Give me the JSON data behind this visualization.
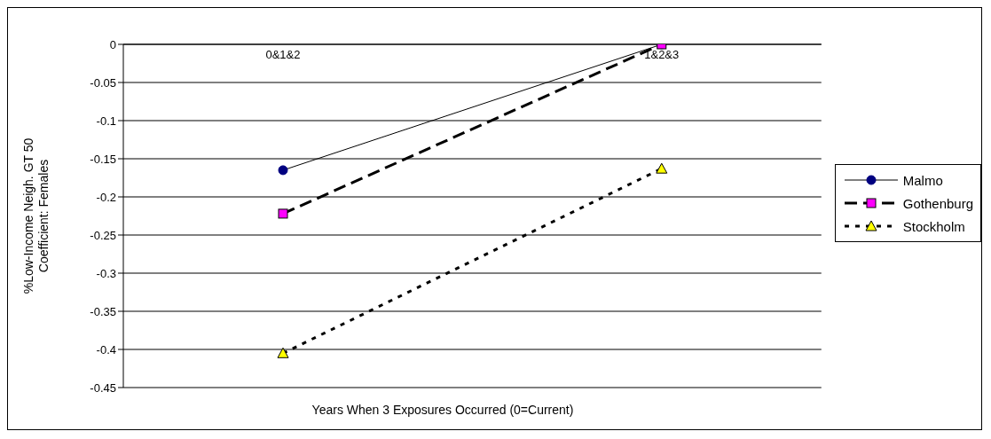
{
  "chart_data": {
    "type": "line",
    "xlabel": "Years When 3 Exposures Occurred (0=Current)",
    "ylabel": "%Low-Income Neigh. GT 50 Coefficient: Females",
    "categories": [
      "0&1&2",
      "1&2&3"
    ],
    "series": [
      {
        "name": "Malmo",
        "color": "#000080",
        "marker": "circle",
        "line_style": "solid",
        "values": [
          -0.165,
          0
        ]
      },
      {
        "name": "Gothenburg",
        "color": "#ff00ff",
        "marker": "square",
        "line_style": "dashed",
        "values": [
          -0.222,
          0
        ]
      },
      {
        "name": "Stockholm",
        "color": "#ffff00",
        "marker": "triangle",
        "line_style": "dotted",
        "values": [
          -0.405,
          -0.163
        ]
      }
    ],
    "ylim": [
      -0.45,
      0
    ],
    "yticks": [
      0,
      -0.05,
      -0.1,
      -0.15,
      -0.2,
      -0.25,
      -0.3,
      -0.35,
      -0.4,
      -0.45
    ],
    "grid": "y",
    "legend": "right"
  }
}
